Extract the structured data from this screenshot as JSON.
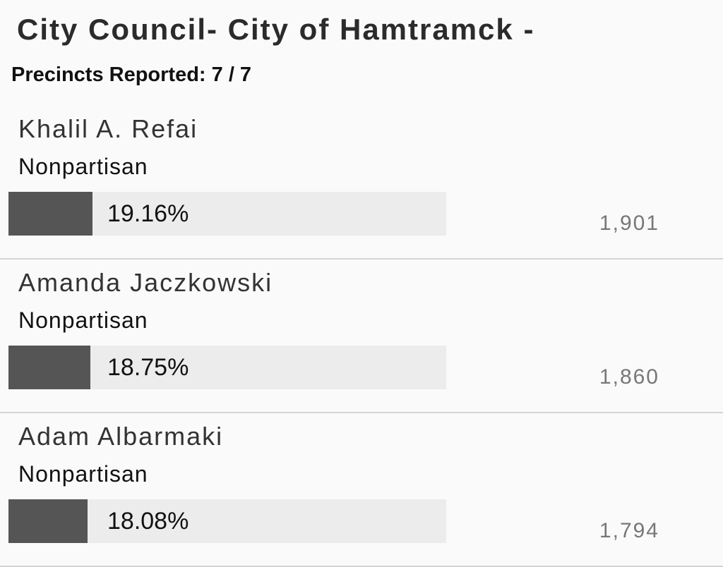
{
  "header": {
    "title": "City Council- City of Hamtramck -",
    "precincts": "Precincts Reported: 7 / 7"
  },
  "candidates": [
    {
      "name": "Khalil A. Refai",
      "party": "Nonpartisan",
      "percent": 19.16,
      "percent_label": "19.16%",
      "votes": "1,901"
    },
    {
      "name": "Amanda Jaczkowski",
      "party": "Nonpartisan",
      "percent": 18.75,
      "percent_label": "18.75%",
      "votes": "1,860"
    },
    {
      "name": "Adam Albarmaki",
      "party": "Nonpartisan",
      "percent": 18.08,
      "percent_label": "18.08%",
      "votes": "1,794"
    }
  ]
}
